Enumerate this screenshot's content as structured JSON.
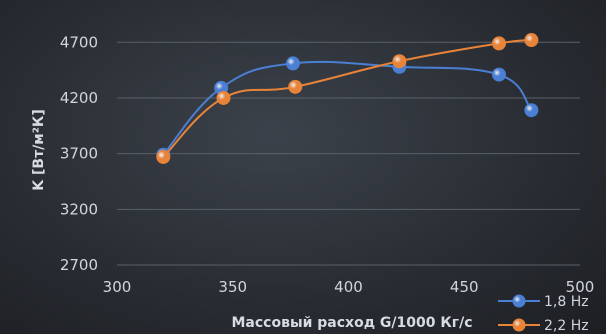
{
  "chart_data": {
    "type": "line",
    "xlabel": "Массовый расход G/1000 Кг/с",
    "ylabel": "K [Вт/м²К]",
    "xlim": [
      300,
      500
    ],
    "ylim": [
      2700,
      4900
    ],
    "x_ticks": [
      300,
      350,
      400,
      450,
      500
    ],
    "y_ticks": [
      2700,
      3200,
      3700,
      4200,
      4700
    ],
    "grid": "horizontal",
    "legend_position": "bottom-right",
    "series": [
      {
        "name": "1,8 Hz",
        "color": "#4a7fd4",
        "x": [
          320,
          345,
          376,
          422,
          465,
          479
        ],
        "y": [
          3690,
          4290,
          4510,
          4480,
          4410,
          4090
        ]
      },
      {
        "name": "2,2 Hz",
        "color": "#e8843a",
        "x": [
          320,
          346,
          377,
          422,
          465,
          479
        ],
        "y": [
          3670,
          4200,
          4300,
          4530,
          4690,
          4720
        ]
      }
    ]
  }
}
